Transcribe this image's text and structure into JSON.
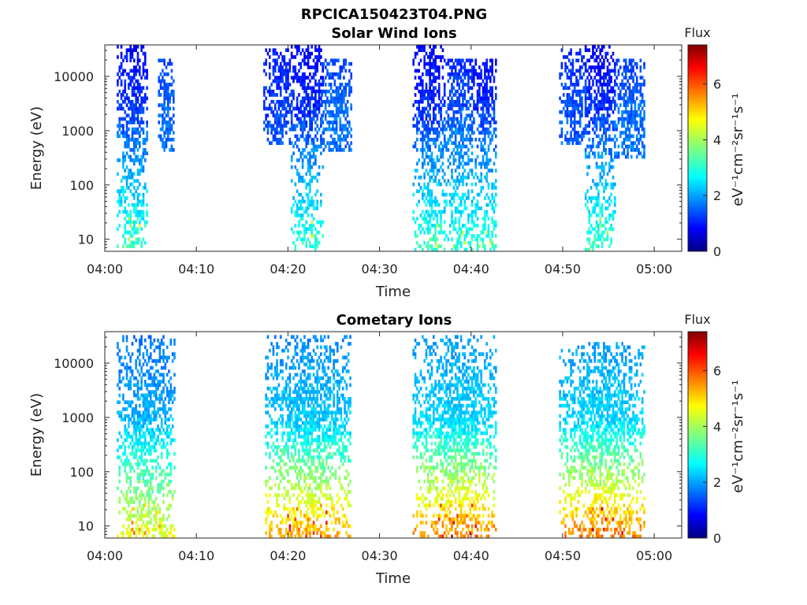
{
  "figure": {
    "title": "RPCICA150423T04.PNG"
  },
  "colorbar": {
    "title": "Flux",
    "unit": "eV⁻¹cm⁻²sr⁻¹s⁻¹",
    "ticks": [
      "0",
      "2",
      "4",
      "6"
    ],
    "range": [
      0,
      7.4
    ],
    "colormap": "jet"
  },
  "chart_data": [
    {
      "type": "heatmap",
      "title": "Solar Wind Ions",
      "xlabel": "Time",
      "ylabel": "Energy (eV)",
      "x_tick_labels": [
        "04:00",
        "04:10",
        "04:20",
        "04:30",
        "04:40",
        "04:50",
        "05:00"
      ],
      "y_tick_labels": [
        "10",
        "100",
        "1000",
        "10000"
      ],
      "xlim_minutes": [
        0,
        63
      ],
      "ylim_eV": [
        6,
        38000
      ],
      "yscale": "log",
      "grid": false,
      "colorbar_label": "Flux",
      "bursts": [
        {
          "start_min": 1.3,
          "end_min": 4.6,
          "energy_min_eV": 6,
          "energy_max_eV": 40000,
          "peak_energy_eV": 2500,
          "peak_flux": 1.3,
          "low_energy_flux": 3.2
        },
        {
          "start_min": 5.8,
          "end_min": 7.6,
          "energy_min_eV": 400,
          "energy_max_eV": 20000,
          "peak_energy_eV": 2000,
          "peak_flux": 1.7,
          "low_energy_flux": 2.0
        },
        {
          "start_min": 17.3,
          "end_min": 20.5,
          "energy_min_eV": 500,
          "energy_max_eV": 30000,
          "peak_energy_eV": 2500,
          "peak_flux": 1.4,
          "low_energy_flux": 2.0
        },
        {
          "start_min": 20.3,
          "end_min": 23.8,
          "energy_min_eV": 6,
          "energy_max_eV": 40000,
          "peak_energy_eV": 3000,
          "peak_flux": 1.2,
          "low_energy_flux": 3.1
        },
        {
          "start_min": 23.6,
          "end_min": 26.8,
          "energy_min_eV": 400,
          "energy_max_eV": 20000,
          "peak_energy_eV": 2000,
          "peak_flux": 1.7,
          "low_energy_flux": 2.0
        },
        {
          "start_min": 33.6,
          "end_min": 37.2,
          "energy_min_eV": 6,
          "energy_max_eV": 40000,
          "peak_energy_eV": 3000,
          "peak_flux": 1.2,
          "low_energy_flux": 3.2
        },
        {
          "start_min": 37.0,
          "end_min": 40.2,
          "energy_min_eV": 6,
          "energy_max_eV": 20000,
          "peak_energy_eV": 2500,
          "peak_flux": 1.5,
          "low_energy_flux": 3.0
        },
        {
          "start_min": 40.0,
          "end_min": 42.8,
          "energy_min_eV": 6,
          "energy_max_eV": 20000,
          "peak_energy_eV": 3000,
          "peak_flux": 1.2,
          "low_energy_flux": 3.2
        },
        {
          "start_min": 49.6,
          "end_min": 52.6,
          "energy_min_eV": 500,
          "energy_max_eV": 30000,
          "peak_energy_eV": 2500,
          "peak_flux": 1.5,
          "low_energy_flux": 2.0
        },
        {
          "start_min": 52.4,
          "end_min": 55.8,
          "energy_min_eV": 6,
          "energy_max_eV": 40000,
          "peak_energy_eV": 3000,
          "peak_flux": 1.2,
          "low_energy_flux": 3.2
        },
        {
          "start_min": 55.6,
          "end_min": 58.9,
          "energy_min_eV": 300,
          "energy_max_eV": 20000,
          "peak_energy_eV": 2000,
          "peak_flux": 1.7,
          "low_energy_flux": 2.0
        }
      ]
    },
    {
      "type": "heatmap",
      "title": "Cometary Ions",
      "xlabel": "Time",
      "ylabel": "Energy (eV)",
      "x_tick_labels": [
        "04:00",
        "04:10",
        "04:20",
        "04:30",
        "04:40",
        "04:50",
        "05:00"
      ],
      "y_tick_labels": [
        "10",
        "100",
        "1000",
        "10000"
      ],
      "xlim_minutes": [
        0,
        63
      ],
      "ylim_eV": [
        6,
        38000
      ],
      "yscale": "log",
      "grid": false,
      "colorbar_label": "Flux",
      "bursts": [
        {
          "start_min": 1.3,
          "end_min": 7.6,
          "energy_min_eV": 6,
          "energy_max_eV": 30000,
          "peak_energy_eV": 1000,
          "peak_flux": 2.2,
          "low_energy_flux": 4.5
        },
        {
          "start_min": 17.5,
          "end_min": 26.8,
          "energy_min_eV": 6,
          "energy_max_eV": 30000,
          "peak_energy_eV": 800,
          "peak_flux": 2.4,
          "low_energy_flux": 5.3
        },
        {
          "start_min": 33.6,
          "end_min": 42.8,
          "energy_min_eV": 6,
          "energy_max_eV": 30000,
          "peak_energy_eV": 800,
          "peak_flux": 2.5,
          "low_energy_flux": 5.5
        },
        {
          "start_min": 49.6,
          "end_min": 58.9,
          "energy_min_eV": 6,
          "energy_max_eV": 25000,
          "peak_energy_eV": 800,
          "peak_flux": 2.5,
          "low_energy_flux": 5.6
        }
      ]
    }
  ]
}
